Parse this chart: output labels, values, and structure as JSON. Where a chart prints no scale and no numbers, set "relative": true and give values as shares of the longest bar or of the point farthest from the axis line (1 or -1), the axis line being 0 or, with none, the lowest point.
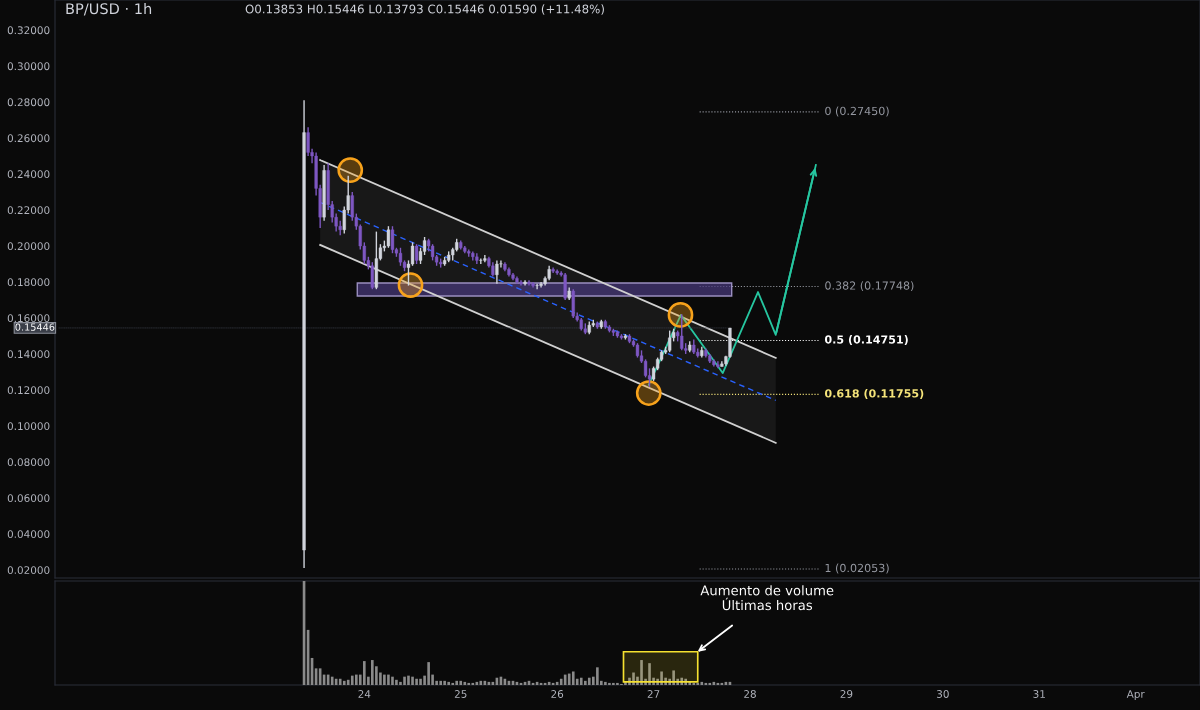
{
  "chart_data": [
    {
      "type": "candlestick",
      "title": "BP/USD · 1h",
      "subtitle": "O0.13853 H0.15446 L0.13793 C0.15446 0.01590 (+11.48%)",
      "x": [
        23.375,
        23.417,
        23.458,
        23.5,
        23.542,
        23.583,
        23.625,
        23.667,
        23.708,
        23.75,
        23.792,
        23.833,
        23.875,
        23.917,
        23.958,
        24.0,
        24.042,
        24.083,
        24.125,
        24.167,
        24.208,
        24.25,
        24.292,
        24.333,
        24.375,
        24.417,
        24.458,
        24.5,
        24.542,
        24.583,
        24.625,
        24.667,
        24.708,
        24.75,
        24.792,
        24.833,
        24.875,
        24.917,
        24.958,
        25.0,
        25.042,
        25.083,
        25.125,
        25.167,
        25.208,
        25.25,
        25.292,
        25.333,
        25.375,
        25.417,
        25.458,
        25.5,
        25.542,
        25.583,
        25.625,
        25.667,
        25.708,
        25.75,
        25.792,
        25.833,
        25.875,
        25.917,
        25.958,
        26.0,
        26.042,
        26.083,
        26.125,
        26.167,
        26.208,
        26.25,
        26.292,
        26.333,
        26.375,
        26.417,
        26.458,
        26.5,
        26.542,
        26.583,
        26.625,
        26.667,
        26.708,
        26.75,
        26.792,
        26.833,
        26.875,
        26.917,
        26.958,
        27.0,
        27.042,
        27.083,
        27.125,
        27.167,
        27.208,
        27.25,
        27.292,
        27.333,
        27.375,
        27.417,
        27.458,
        27.5,
        27.542,
        27.583,
        27.625,
        27.667,
        27.708,
        27.75,
        27.792
      ],
      "ohlc": [
        [
          0.031,
          0.281,
          0.021,
          0.263
        ],
        [
          0.263,
          0.266,
          0.25,
          0.252
        ],
        [
          0.252,
          0.254,
          0.246,
          0.25
        ],
        [
          0.25,
          0.252,
          0.228,
          0.232
        ],
        [
          0.232,
          0.234,
          0.21,
          0.216
        ],
        [
          0.216,
          0.245,
          0.214,
          0.242
        ],
        [
          0.242,
          0.246,
          0.22,
          0.223
        ],
        [
          0.223,
          0.225,
          0.213,
          0.216
        ],
        [
          0.216,
          0.218,
          0.208,
          0.211
        ],
        [
          0.211,
          0.214,
          0.206,
          0.209
        ],
        [
          0.209,
          0.222,
          0.207,
          0.22
        ],
        [
          0.22,
          0.239,
          0.218,
          0.228
        ],
        [
          0.228,
          0.23,
          0.214,
          0.216
        ],
        [
          0.216,
          0.218,
          0.209,
          0.211
        ],
        [
          0.211,
          0.212,
          0.198,
          0.2
        ],
        [
          0.2,
          0.202,
          0.19,
          0.192
        ],
        [
          0.192,
          0.194,
          0.187,
          0.189
        ],
        [
          0.189,
          0.191,
          0.176,
          0.177
        ],
        [
          0.177,
          0.208,
          0.176,
          0.193
        ],
        [
          0.193,
          0.201,
          0.192,
          0.199
        ],
        [
          0.199,
          0.203,
          0.197,
          0.2
        ],
        [
          0.2,
          0.211,
          0.199,
          0.209
        ],
        [
          0.209,
          0.211,
          0.196,
          0.198
        ],
        [
          0.198,
          0.199,
          0.194,
          0.196
        ],
        [
          0.196,
          0.199,
          0.189,
          0.191
        ],
        [
          0.191,
          0.192,
          0.186,
          0.188
        ],
        [
          0.188,
          0.192,
          0.178,
          0.19
        ],
        [
          0.19,
          0.202,
          0.189,
          0.2
        ],
        [
          0.2,
          0.201,
          0.19,
          0.192
        ],
        [
          0.192,
          0.199,
          0.19,
          0.197
        ],
        [
          0.197,
          0.205,
          0.195,
          0.203
        ],
        [
          0.203,
          0.204,
          0.197,
          0.2
        ],
        [
          0.2,
          0.201,
          0.192,
          0.194
        ],
        [
          0.194,
          0.195,
          0.189,
          0.191
        ],
        [
          0.191,
          0.193,
          0.188,
          0.19
        ],
        [
          0.19,
          0.194,
          0.189,
          0.192
        ],
        [
          0.192,
          0.197,
          0.191,
          0.195
        ],
        [
          0.195,
          0.199,
          0.192,
          0.198
        ],
        [
          0.198,
          0.204,
          0.197,
          0.202
        ],
        [
          0.202,
          0.203,
          0.198,
          0.199
        ],
        [
          0.199,
          0.2,
          0.196,
          0.197
        ],
        [
          0.197,
          0.198,
          0.194,
          0.196
        ],
        [
          0.196,
          0.197,
          0.192,
          0.194
        ],
        [
          0.194,
          0.196,
          0.19,
          0.192
        ],
        [
          0.192,
          0.193,
          0.19,
          0.192
        ],
        [
          0.192,
          0.195,
          0.191,
          0.193
        ],
        [
          0.193,
          0.194,
          0.188,
          0.189
        ],
        [
          0.189,
          0.191,
          0.183,
          0.184
        ],
        [
          0.184,
          0.192,
          0.179,
          0.19
        ],
        [
          0.19,
          0.192,
          0.188,
          0.19
        ],
        [
          0.19,
          0.191,
          0.186,
          0.187
        ],
        [
          0.187,
          0.188,
          0.183,
          0.184
        ],
        [
          0.184,
          0.185,
          0.181,
          0.182
        ],
        [
          0.182,
          0.183,
          0.179,
          0.18
        ],
        [
          0.18,
          0.181,
          0.178,
          0.179
        ],
        [
          0.179,
          0.181,
          0.178,
          0.18
        ],
        [
          0.18,
          0.181,
          0.178,
          0.179
        ],
        [
          0.179,
          0.18,
          0.177,
          0.178
        ],
        [
          0.178,
          0.179,
          0.176,
          0.178
        ],
        [
          0.178,
          0.18,
          0.177,
          0.179
        ],
        [
          0.179,
          0.183,
          0.178,
          0.182
        ],
        [
          0.182,
          0.189,
          0.181,
          0.187
        ],
        [
          0.187,
          0.188,
          0.185,
          0.186
        ],
        [
          0.186,
          0.187,
          0.184,
          0.185
        ],
        [
          0.185,
          0.186,
          0.183,
          0.184
        ],
        [
          0.184,
          0.185,
          0.17,
          0.171
        ],
        [
          0.171,
          0.177,
          0.17,
          0.175
        ],
        [
          0.175,
          0.176,
          0.16,
          0.161
        ],
        [
          0.161,
          0.163,
          0.158,
          0.159
        ],
        [
          0.159,
          0.16,
          0.153,
          0.154
        ],
        [
          0.154,
          0.157,
          0.151,
          0.152
        ],
        [
          0.152,
          0.158,
          0.151,
          0.156
        ],
        [
          0.156,
          0.159,
          0.155,
          0.157
        ],
        [
          0.157,
          0.158,
          0.154,
          0.155
        ],
        [
          0.155,
          0.159,
          0.154,
          0.158
        ],
        [
          0.158,
          0.159,
          0.154,
          0.155
        ],
        [
          0.155,
          0.156,
          0.152,
          0.153
        ],
        [
          0.153,
          0.154,
          0.15,
          0.152
        ],
        [
          0.152,
          0.153,
          0.149,
          0.15
        ],
        [
          0.15,
          0.151,
          0.148,
          0.149
        ],
        [
          0.149,
          0.151,
          0.148,
          0.15
        ],
        [
          0.15,
          0.151,
          0.146,
          0.147
        ],
        [
          0.147,
          0.148,
          0.144,
          0.145
        ],
        [
          0.145,
          0.146,
          0.138,
          0.139
        ],
        [
          0.139,
          0.142,
          0.135,
          0.136
        ],
        [
          0.136,
          0.137,
          0.127,
          0.128
        ],
        [
          0.128,
          0.132,
          0.1217,
          0.126
        ],
        [
          0.126,
          0.133,
          0.125,
          0.132
        ],
        [
          0.132,
          0.138,
          0.131,
          0.137
        ],
        [
          0.137,
          0.142,
          0.136,
          0.141
        ],
        [
          0.141,
          0.144,
          0.14,
          0.142
        ],
        [
          0.142,
          0.153,
          0.141,
          0.149
        ],
        [
          0.149,
          0.154,
          0.147,
          0.152
        ],
        [
          0.152,
          0.153,
          0.147,
          0.15
        ],
        [
          0.15,
          0.162,
          0.142,
          0.143
        ],
        [
          0.143,
          0.146,
          0.14,
          0.142
        ],
        [
          0.142,
          0.147,
          0.141,
          0.145
        ],
        [
          0.145,
          0.148,
          0.14,
          0.141
        ],
        [
          0.141,
          0.143,
          0.138,
          0.139
        ],
        [
          0.139,
          0.144,
          0.138,
          0.142
        ],
        [
          0.142,
          0.143,
          0.138,
          0.139
        ],
        [
          0.139,
          0.14,
          0.135,
          0.136
        ],
        [
          0.136,
          0.137,
          0.133,
          0.134
        ],
        [
          0.134,
          0.136,
          0.132,
          0.133
        ],
        [
          0.133,
          0.136,
          0.133,
          0.1345
        ],
        [
          0.1345,
          0.139,
          0.1335,
          0.13853
        ],
        [
          0.13853,
          0.15446,
          0.13793,
          0.15446
        ]
      ],
      "colors": [
        "#d1d4dc",
        "#7e57c2",
        "#7e57c2",
        "#7e57c2",
        "#7e57c2",
        "#d1d4dc",
        "#7e57c2",
        "#7e57c2",
        "#7e57c2",
        "#7e57c2",
        "#d1d4dc",
        "#d1d4dc",
        "#7e57c2",
        "#7e57c2",
        "#7e57c2",
        "#7e57c2",
        "#7e57c2",
        "#7e57c2",
        "#d1d4dc",
        "#d1d4dc",
        "#d1d4dc",
        "#d1d4dc",
        "#7e57c2",
        "#7e57c2",
        "#7e57c2",
        "#7e57c2",
        "#d1d4dc",
        "#d1d4dc",
        "#7e57c2",
        "#d1d4dc",
        "#d1d4dc",
        "#7e57c2",
        "#7e57c2",
        "#7e57c2",
        "#7e57c2",
        "#d1d4dc",
        "#d1d4dc",
        "#d1d4dc",
        "#d1d4dc",
        "#7e57c2",
        "#7e57c2",
        "#7e57c2",
        "#7e57c2",
        "#7e57c2",
        "#d1d4dc",
        "#d1d4dc",
        "#7e57c2",
        "#7e57c2",
        "#d1d4dc",
        "#d1d4dc",
        "#7e57c2",
        "#7e57c2",
        "#7e57c2",
        "#7e57c2",
        "#7e57c2",
        "#d1d4dc",
        "#7e57c2",
        "#7e57c2",
        "#d1d4dc",
        "#d1d4dc",
        "#d1d4dc",
        "#d1d4dc",
        "#7e57c2",
        "#7e57c2",
        "#7e57c2",
        "#7e57c2",
        "#d1d4dc",
        "#7e57c2",
        "#7e57c2",
        "#7e57c2",
        "#7e57c2",
        "#d1d4dc",
        "#d1d4dc",
        "#7e57c2",
        "#d1d4dc",
        "#7e57c2",
        "#7e57c2",
        "#7e57c2",
        "#7e57c2",
        "#7e57c2",
        "#d1d4dc",
        "#7e57c2",
        "#7e57c2",
        "#7e57c2",
        "#7e57c2",
        "#7e57c2",
        "#7e57c2",
        "#d1d4dc",
        "#d1d4dc",
        "#d1d4dc",
        "#d1d4dc",
        "#d1d4dc",
        "#d1d4dc",
        "#7e57c2",
        "#7e57c2",
        "#7e57c2",
        "#d1d4dc",
        "#7e57c2",
        "#7e57c2",
        "#d1d4dc",
        "#7e57c2",
        "#7e57c2",
        "#7e57c2",
        "#7e57c2",
        "#d1d4dc",
        "#d1d4dc",
        "#d1d4dc"
      ],
      "series": [
        {
          "type": "line",
          "x": [
            23.542,
            28.267
          ],
          "values": [
            0.2242,
            0.1142
          ],
          "lower": [
            0.2006,
            0.0906
          ],
          "upper": [
            0.2478,
            0.1378
          ],
          "color": "#2962ff",
          "line_style": "dashed",
          "marker": "none"
        },
        {
          "type": "line",
          "x": [
            23.542,
            28.267
          ],
          "values": [
            0.2478,
            0.1378
          ],
          "color": "#d0d0d0",
          "line_style": "solid",
          "marker": "none"
        },
        {
          "type": "line",
          "x": [
            23.542,
            28.267
          ],
          "values": [
            0.2006,
            0.0906
          ],
          "color": "#d0d0d0",
          "line_style": "solid",
          "marker": "none"
        },
        {
          "type": "scatter",
          "x": [
            23.854,
            24.479,
            27.279,
            26.95
          ],
          "values": [
            0.2422,
            0.1783,
            0.1617,
            0.1183
          ],
          "color": "#f7a21b",
          "marker": "circle"
        },
        {
          "type": "line",
          "x": [
            26.95,
            27.283,
            27.717,
            28.083,
            28.267,
            28.683
          ],
          "values": [
            0.1228,
            0.1617,
            0.1294,
            0.1744,
            0.1506,
            0.245
          ],
          "color": "#26c6a0",
          "line_style": "solid",
          "marker": "none"
        }
      ],
      "ref_lines": [
        {
          "axis": "y",
          "value": 0.2745,
          "label": "0 (0.27450)",
          "color": "#9598a1",
          "line_style": "dotted"
        },
        {
          "axis": "y",
          "value": 0.17748,
          "label": "0.382 (0.17748)",
          "color": "#9598a1",
          "line_style": "dotted"
        },
        {
          "axis": "y",
          "value": 0.14751,
          "label": "0.5 (0.14751)",
          "color": "#ffffff",
          "line_style": "dotted"
        },
        {
          "axis": "y",
          "value": 0.11755,
          "label": "0.618 (0.11755)",
          "color": "#f5e47a",
          "line_style": "dotted"
        },
        {
          "axis": "y",
          "value": 0.02053,
          "label": "1 (0.02053)",
          "color": "#9598a1",
          "line_style": "dotted"
        }
      ],
      "bands": [
        {
          "axis": "y",
          "from": 0.1722,
          "to": 0.1794,
          "color": "#4a3a80"
        }
      ],
      "annotations": [
        {
          "text": "0.15446",
          "x": 27.792,
          "y": 0.15446
        }
      ],
      "xlim": [
        20.792,
        32.667
      ],
      "ylim": [
        0.0155,
        0.3367
      ],
      "yticks": [
        {
          "value": 0.02,
          "label": "0.02000"
        },
        {
          "value": 0.04,
          "label": "0.04000"
        },
        {
          "value": 0.06,
          "label": "0.06000"
        },
        {
          "value": 0.08,
          "label": "0.08000"
        },
        {
          "value": 0.1,
          "label": "0.10000"
        },
        {
          "value": 0.12,
          "label": "0.12000"
        },
        {
          "value": 0.14,
          "label": "0.14000"
        },
        {
          "value": 0.16,
          "label": "0.16000"
        },
        {
          "value": 0.18,
          "label": "0.18000"
        },
        {
          "value": 0.2,
          "label": "0.20000"
        },
        {
          "value": 0.22,
          "label": "0.22000"
        },
        {
          "value": 0.24,
          "label": "0.24000"
        },
        {
          "value": 0.26,
          "label": "0.26000"
        },
        {
          "value": 0.28,
          "label": "0.28000"
        },
        {
          "value": 0.3,
          "label": "0.30000"
        },
        {
          "value": 0.32,
          "label": "0.32000"
        }
      ],
      "tick_labels": "y"
    },
    {
      "type": "bar",
      "relative": true,
      "color": "#8a8a8a",
      "x": [
        23.375,
        23.417,
        23.458,
        23.5,
        23.542,
        23.583,
        23.625,
        23.667,
        23.708,
        23.75,
        23.792,
        23.833,
        23.875,
        23.917,
        23.958,
        24.0,
        24.042,
        24.083,
        24.125,
        24.167,
        24.208,
        24.25,
        24.292,
        24.333,
        24.375,
        24.417,
        24.458,
        24.5,
        24.542,
        24.583,
        24.625,
        24.667,
        24.708,
        24.75,
        24.792,
        24.833,
        24.875,
        24.917,
        24.958,
        25.0,
        25.042,
        25.083,
        25.125,
        25.167,
        25.208,
        25.25,
        25.292,
        25.333,
        25.375,
        25.417,
        25.458,
        25.5,
        25.542,
        25.583,
        25.625,
        25.667,
        25.708,
        25.75,
        25.792,
        25.833,
        25.875,
        25.917,
        25.958,
        26.0,
        26.042,
        26.083,
        26.125,
        26.167,
        26.208,
        26.25,
        26.292,
        26.333,
        26.375,
        26.417,
        26.458,
        26.5,
        26.542,
        26.583,
        26.625,
        26.667,
        26.708,
        26.75,
        26.792,
        26.833,
        26.875,
        26.917,
        26.958,
        27.0,
        27.042,
        27.083,
        27.125,
        27.167,
        27.208,
        27.25,
        27.292,
        27.333,
        27.375,
        27.417,
        27.458,
        27.5,
        27.542,
        27.583,
        27.625,
        27.667,
        27.708,
        27.75,
        27.792
      ],
      "values": [
        1.0,
        0.53,
        0.26,
        0.16,
        0.16,
        0.1,
        0.1,
        0.08,
        0.06,
        0.06,
        0.04,
        0.05,
        0.09,
        0.1,
        0.1,
        0.23,
        0.08,
        0.24,
        0.18,
        0.12,
        0.1,
        0.1,
        0.08,
        0.05,
        0.03,
        0.08,
        0.09,
        0.08,
        0.06,
        0.06,
        0.09,
        0.22,
        0.1,
        0.04,
        0.04,
        0.04,
        0.03,
        0.02,
        0.04,
        0.04,
        0.03,
        0.02,
        0.02,
        0.03,
        0.04,
        0.04,
        0.03,
        0.03,
        0.07,
        0.08,
        0.06,
        0.04,
        0.04,
        0.03,
        0.02,
        0.03,
        0.04,
        0.02,
        0.03,
        0.02,
        0.02,
        0.03,
        0.02,
        0.03,
        0.06,
        0.1,
        0.11,
        0.13,
        0.06,
        0.07,
        0.04,
        0.07,
        0.08,
        0.17,
        0.04,
        0.03,
        0.02,
        0.02,
        0.02,
        0.01,
        0.03,
        0.07,
        0.12,
        0.08,
        0.24,
        0.06,
        0.21,
        0.07,
        0.06,
        0.13,
        0.07,
        0.06,
        0.14,
        0.06,
        0.07,
        0.06,
        0.03,
        0.02,
        0.02,
        0.03,
        0.02,
        0.02,
        0.03,
        0.02,
        0.02,
        0.03,
        0.03
      ],
      "bands": [
        {
          "axis": "x",
          "from": 26.688,
          "to": 27.458,
          "color": "#f5e130"
        }
      ],
      "annotations": [
        {
          "text": "Aumento de volume\nÚltimas horas",
          "x": 27.458,
          "y": 0.32
        }
      ],
      "xlim": [
        20.792,
        32.667
      ],
      "xticks": [
        24,
        25,
        26,
        27,
        28,
        29,
        30,
        31,
        {
          "value": 32,
          "label": "Apr"
        }
      ],
      "tick_labels": "x"
    }
  ]
}
